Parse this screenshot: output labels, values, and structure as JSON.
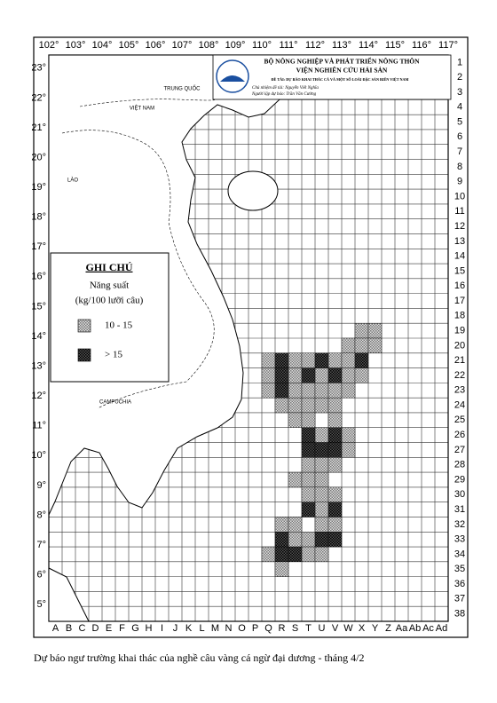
{
  "header": {
    "ministry": "BỘ NÔNG NGHIỆP VÀ PHÁT TRIỂN NÔNG THÔN",
    "institute": "VIỆN NGHIÊN CỨU HẢI SẢN",
    "project": "ĐỀ TÀI: DỰ BÁO KHAI THÁC CÁ VÀ MỘT SỐ LOÀI ĐẶC SẢN BIỂN VIỆT NAM",
    "leader": "Chủ nhiệm đề tài: Nguyễn Viết Nghĩa",
    "forecaster": "Người lập dự báo: Trần Văn Cường"
  },
  "map": {
    "longitudes": [
      "102°",
      "103°",
      "104°",
      "105°",
      "106°",
      "107°",
      "108°",
      "109°",
      "110°",
      "111°",
      "112°",
      "113°",
      "114°",
      "115°",
      "116°",
      "117°"
    ],
    "latitudes": [
      "23°",
      "22°",
      "21°",
      "20°",
      "19°",
      "18°",
      "17°",
      "16°",
      "15°",
      "14°",
      "13°",
      "12°",
      "11°",
      "10°",
      "9°",
      "8°",
      "7°",
      "6°",
      "5°"
    ],
    "rows": [
      1,
      2,
      3,
      4,
      5,
      6,
      7,
      8,
      9,
      10,
      11,
      12,
      13,
      14,
      15,
      16,
      17,
      18,
      19,
      20,
      21,
      22,
      23,
      24,
      25,
      26,
      27,
      28,
      29,
      30,
      31,
      32,
      33,
      34,
      35,
      36,
      37,
      38
    ],
    "columns": [
      "A",
      "B",
      "C",
      "D",
      "E",
      "F",
      "G",
      "H",
      "I",
      "J",
      "K",
      "L",
      "M",
      "N",
      "O",
      "P",
      "Q",
      "R",
      "S",
      "T",
      "U",
      "V",
      "W",
      "X",
      "Y",
      "Z",
      "Aa",
      "Ab",
      "Ac",
      "Ad"
    ],
    "regions": [
      "TRUNG QUỐC",
      "VIỆT NAM",
      "LÀO",
      "CAMPUCHIA"
    ]
  },
  "legend": {
    "title": "GHI CHÚ",
    "subtitle": "Năng suất",
    "unit": "(kg/100 lưỡi câu)",
    "items": [
      {
        "label": "10 - 15",
        "cells": [
          [
            "X",
            19
          ],
          [
            "Y",
            19
          ],
          [
            "W",
            20
          ],
          [
            "X",
            20
          ],
          [
            "Y",
            20
          ],
          [
            "Q",
            21
          ],
          [
            "S",
            21
          ],
          [
            "T",
            21
          ],
          [
            "V",
            21
          ],
          [
            "W",
            21
          ],
          [
            "Q",
            22
          ],
          [
            "S",
            22
          ],
          [
            "U",
            22
          ],
          [
            "W",
            22
          ],
          [
            "X",
            22
          ],
          [
            "Q",
            23
          ],
          [
            "S",
            23
          ],
          [
            "T",
            23
          ],
          [
            "U",
            23
          ],
          [
            "V",
            23
          ],
          [
            "W",
            23
          ],
          [
            "R",
            24
          ],
          [
            "S",
            24
          ],
          [
            "T",
            24
          ],
          [
            "U",
            24
          ],
          [
            "V",
            24
          ],
          [
            "S",
            25
          ],
          [
            "T",
            25
          ],
          [
            "V",
            25
          ],
          [
            "U",
            26
          ],
          [
            "W",
            26
          ],
          [
            "W",
            27
          ],
          [
            "T",
            28
          ],
          [
            "U",
            28
          ],
          [
            "V",
            28
          ],
          [
            "S",
            29
          ],
          [
            "T",
            29
          ],
          [
            "U",
            29
          ],
          [
            "T",
            30
          ],
          [
            "U",
            30
          ],
          [
            "V",
            30
          ],
          [
            "U",
            31
          ],
          [
            "R",
            32
          ],
          [
            "S",
            32
          ],
          [
            "U",
            32
          ],
          [
            "V",
            32
          ],
          [
            "S",
            33
          ],
          [
            "T",
            33
          ],
          [
            "Q",
            34
          ],
          [
            "T",
            34
          ],
          [
            "U",
            34
          ],
          [
            "R",
            35
          ]
        ]
      },
      {
        "label": "> 15",
        "cells": [
          [
            "R",
            21
          ],
          [
            "U",
            21
          ],
          [
            "X",
            21
          ],
          [
            "R",
            22
          ],
          [
            "T",
            22
          ],
          [
            "V",
            22
          ],
          [
            "R",
            23
          ],
          [
            "T",
            26
          ],
          [
            "V",
            26
          ],
          [
            "T",
            27
          ],
          [
            "U",
            27
          ],
          [
            "V",
            27
          ],
          [
            "T",
            31
          ],
          [
            "V",
            31
          ],
          [
            "R",
            33
          ],
          [
            "U",
            33
          ],
          [
            "V",
            33
          ],
          [
            "R",
            34
          ],
          [
            "S",
            34
          ]
        ]
      }
    ]
  },
  "caption": "Dự báo ngư trường khai thác của nghề câu vàng cá ngừ đại dương - tháng 4/2"
}
